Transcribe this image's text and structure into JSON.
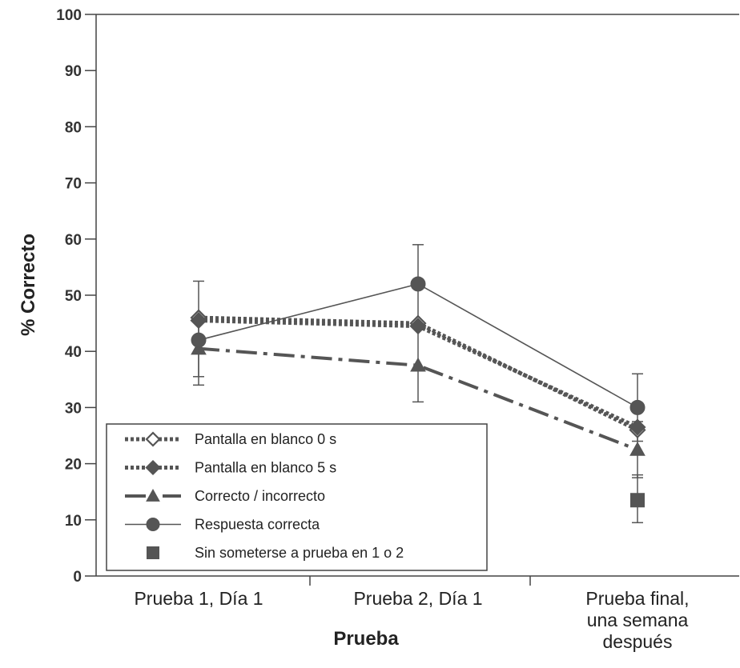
{
  "chart_data": {
    "type": "line",
    "ylabel": "% Correcto",
    "xlabel": "Prueba",
    "ylim": [
      0,
      100
    ],
    "yticks": [
      0,
      10,
      20,
      30,
      40,
      50,
      60,
      70,
      80,
      90,
      100
    ],
    "grid": false,
    "legend_position": "bottom-left",
    "categories": [
      [
        "Prueba 1, Día 1"
      ],
      [
        "Prueba 2, Día 1"
      ],
      [
        "Prueba final,",
        "una semana",
        "después"
      ]
    ],
    "series": [
      {
        "name": "Pantalla en blanco 0 s",
        "marker": "diamond-open",
        "line": "dotted",
        "color": "#555555",
        "values": [
          46,
          45,
          26
        ],
        "errors": [
          null,
          null,
          null
        ]
      },
      {
        "name": "Pantalla en blanco 5 s",
        "marker": "diamond",
        "line": "dotted",
        "color": "#555555",
        "values": [
          45.5,
          44.5,
          26.5
        ],
        "errors": [
          null,
          null,
          null
        ]
      },
      {
        "name": "Correcto / incorrecto",
        "marker": "triangle",
        "line": "dashdot",
        "color": "#555555",
        "values": [
          40.5,
          37.5,
          22.5
        ],
        "errors": [
          [
            35.5,
            45.5
          ],
          [
            31,
            44.5
          ],
          [
            17.5,
            27.5
          ]
        ]
      },
      {
        "name": "Respuesta correcta",
        "marker": "circle",
        "line": "solid",
        "color": "#555555",
        "values": [
          42,
          52,
          30
        ],
        "errors": [
          [
            34,
            52.5
          ],
          [
            45,
            59
          ],
          [
            24,
            36
          ]
        ]
      },
      {
        "name": "Sin someterse a prueba en 1 o 2",
        "marker": "square",
        "line": "none",
        "color": "#555555",
        "values": [
          null,
          null,
          13.5
        ],
        "errors": [
          null,
          null,
          [
            9.5,
            18
          ]
        ]
      }
    ]
  }
}
